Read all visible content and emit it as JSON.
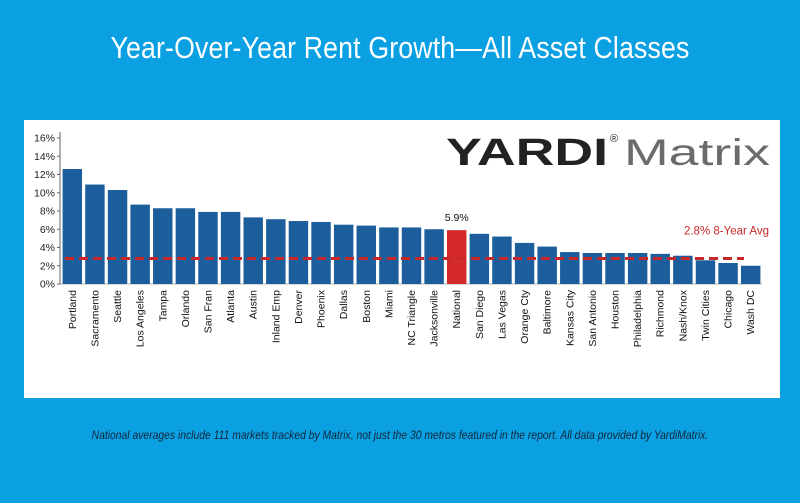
{
  "title": "Year-Over-Year Rent Growth—All Asset Classes",
  "footnote": "National averages include 111 markets tracked by Matrix, not just the 30 metros featured in the report. All data provided by YardiMatrix.",
  "logo": {
    "brand": "YARDI",
    "registered": "®",
    "product": "Matrix"
  },
  "colors": {
    "background": "#0aa0e2",
    "bar": "#1c5d9c",
    "highlight_bar": "#d42a2a",
    "avg_line": "#c8282a",
    "logo_dark": "#222222",
    "logo_light": "#6b6b6b"
  },
  "chart_data": {
    "type": "bar",
    "categories": [
      "Portland",
      "Sacramento",
      "Seattle",
      "Los Angeles",
      "Tampa",
      "Orlando",
      "San Fran",
      "Atlanta",
      "Austin",
      "Inland Emp",
      "Denver",
      "Phoenix",
      "Dallas",
      "Boston",
      "Miami",
      "NC Triangle",
      "Jacksonville",
      "National",
      "San Diego",
      "Las Vegas",
      "Orange Cty",
      "Baltimore",
      "Kansas City",
      "San Antonio",
      "Houston",
      "Philadelphia",
      "Richmond",
      "Nash/Knox",
      "Twin Cities",
      "Chicago",
      "Wash DC"
    ],
    "values": [
      12.6,
      10.9,
      10.3,
      8.7,
      8.3,
      8.3,
      7.9,
      7.9,
      7.3,
      7.1,
      6.9,
      6.8,
      6.5,
      6.4,
      6.2,
      6.2,
      6.0,
      5.9,
      5.5,
      5.2,
      4.5,
      4.1,
      3.5,
      3.4,
      3.4,
      3.4,
      3.3,
      3.1,
      2.6,
      2.3,
      2.0
    ],
    "highlight": {
      "category": "National",
      "label": "5.9%"
    },
    "reference_line": {
      "value": 2.8,
      "label": "2.8% 8-Year Avg"
    },
    "yticks": [
      "0%",
      "2%",
      "4%",
      "6%",
      "8%",
      "10%",
      "12%",
      "14%",
      "16%"
    ],
    "ylim": [
      0,
      16
    ],
    "grid": false,
    "legend": "none"
  }
}
